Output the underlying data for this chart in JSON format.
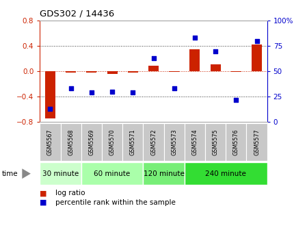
{
  "title": "GDS302 / 14436",
  "samples": [
    "GSM5567",
    "GSM5568",
    "GSM5569",
    "GSM5570",
    "GSM5571",
    "GSM5572",
    "GSM5573",
    "GSM5574",
    "GSM5575",
    "GSM5576",
    "GSM5577"
  ],
  "log_ratio": [
    -0.75,
    -0.02,
    -0.02,
    -0.04,
    -0.02,
    0.09,
    -0.01,
    0.35,
    0.11,
    -0.01,
    0.42
  ],
  "percentile": [
    13,
    33,
    29,
    30,
    29,
    63,
    33,
    83,
    70,
    22,
    80
  ],
  "ylim_left": [
    -0.8,
    0.8
  ],
  "ylim_right": [
    0,
    100
  ],
  "yticks_left": [
    -0.8,
    -0.4,
    0.0,
    0.4,
    0.8
  ],
  "yticks_right": [
    0,
    25,
    50,
    75,
    100
  ],
  "hlines_dotted": [
    -0.4,
    0.4
  ],
  "hline_zero_color": "#cc2200",
  "dotted_line_color": "#333333",
  "bar_color": "#cc2200",
  "dot_color": "#0000cc",
  "time_groups": [
    {
      "label": "30 minute",
      "start": 0,
      "end": 2,
      "color": "#ccffcc"
    },
    {
      "label": "60 minute",
      "start": 2,
      "end": 5,
      "color": "#aaffaa"
    },
    {
      "label": "120 minute",
      "start": 5,
      "end": 7,
      "color": "#77ee77"
    },
    {
      "label": "240 minute",
      "start": 7,
      "end": 11,
      "color": "#33dd33"
    }
  ],
  "tick_bg_color": "#c8c8c8",
  "legend_log_ratio_color": "#cc2200",
  "legend_percentile_color": "#0000cc",
  "legend_log_ratio_label": "log ratio",
  "legend_percentile_label": "percentile rank within the sample",
  "left_tick_color": "#cc2200",
  "right_tick_color": "#0000cc"
}
